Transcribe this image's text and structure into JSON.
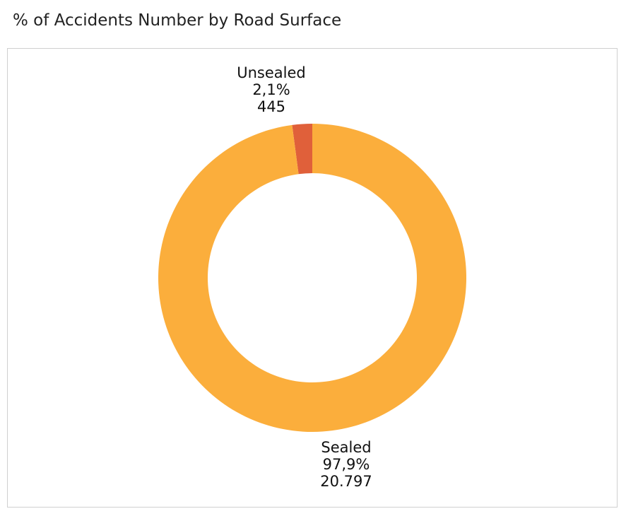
{
  "title": "% of Accidents Number by Road Surface",
  "chart_data": {
    "type": "pie",
    "variant": "donut",
    "title": "% of Accidents Number by Road Surface",
    "slices": [
      {
        "name": "Unsealed",
        "percent": 2.1,
        "percent_label": "2,1%",
        "value": 445,
        "value_label": "445",
        "color": "#e0603a"
      },
      {
        "name": "Sealed",
        "percent": 97.9,
        "percent_label": "97,9%",
        "value": 20797,
        "value_label": "20.797",
        "color": "#fbae3c"
      }
    ],
    "legend": "none"
  }
}
